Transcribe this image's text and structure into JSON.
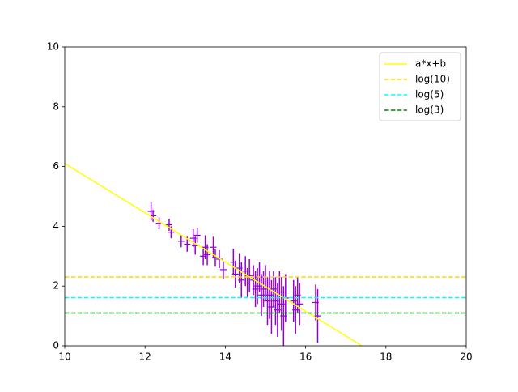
{
  "chart_data": {
    "type": "line",
    "xlim": [
      10,
      20
    ],
    "xticks": [
      10,
      12,
      14,
      16,
      18,
      20
    ],
    "ylim": [
      0,
      10
    ],
    "yticks": [
      0,
      2,
      4,
      6,
      8,
      10
    ],
    "legend": "upper right",
    "series": [
      {
        "name": "a*x+b",
        "color": "#ffff00",
        "dash": false,
        "x": [
          10,
          17.4
        ],
        "values": [
          6.1,
          0
        ]
      },
      {
        "name": "log(10)",
        "color": "#ffd700",
        "dash": true,
        "x": [
          10,
          20
        ],
        "values": [
          2.303,
          2.303
        ]
      },
      {
        "name": "log(5)",
        "color": "#00ffff",
        "dash": true,
        "x": [
          10,
          20
        ],
        "values": [
          1.609,
          1.609
        ]
      },
      {
        "name": "log(3)",
        "color": "#008000",
        "dash": true,
        "x": [
          10,
          20
        ],
        "values": [
          1.099,
          1.099
        ]
      }
    ],
    "points": {
      "color": "#9400d3",
      "x": [
        12.15,
        12.2,
        12.35,
        12.6,
        12.65,
        12.9,
        13.05,
        13.2,
        13.25,
        13.3,
        13.45,
        13.5,
        13.55,
        13.7,
        13.75,
        13.85,
        13.95,
        14.2,
        14.25,
        14.35,
        14.4,
        14.5,
        14.55,
        14.6,
        14.7,
        14.75,
        14.8,
        14.85,
        14.9,
        14.95,
        15.0,
        15.05,
        15.1,
        15.15,
        15.2,
        15.25,
        15.3,
        15.35,
        15.4,
        15.45,
        15.5,
        15.7,
        15.75,
        15.8,
        15.85,
        16.25,
        16.3
      ],
      "values": [
        4.5,
        4.35,
        4.1,
        4.05,
        3.8,
        3.5,
        3.4,
        3.6,
        3.35,
        3.7,
        3.0,
        3.3,
        3.05,
        3.3,
        2.95,
        2.9,
        2.55,
        2.8,
        2.4,
        2.6,
        2.2,
        2.5,
        2.1,
        2.35,
        2.2,
        1.9,
        2.0,
        2.3,
        1.7,
        1.9,
        2.1,
        1.5,
        1.7,
        1.3,
        1.9,
        1.5,
        1.2,
        1.8,
        1.4,
        1.0,
        1.6,
        1.5,
        1.2,
        1.7,
        1.4,
        1.45,
        1.0
      ],
      "errors": [
        0.3,
        0.2,
        0.2,
        0.2,
        0.2,
        0.2,
        0.25,
        0.3,
        0.3,
        0.25,
        0.3,
        0.4,
        0.35,
        0.35,
        0.3,
        0.3,
        0.3,
        0.45,
        0.45,
        0.5,
        0.6,
        0.5,
        0.5,
        0.55,
        0.5,
        0.6,
        0.6,
        0.5,
        0.7,
        0.6,
        0.6,
        0.8,
        0.8,
        0.9,
        0.6,
        0.8,
        0.9,
        0.7,
        0.9,
        1.0,
        0.8,
        0.7,
        0.8,
        0.6,
        0.7,
        0.6,
        0.9
      ]
    }
  }
}
